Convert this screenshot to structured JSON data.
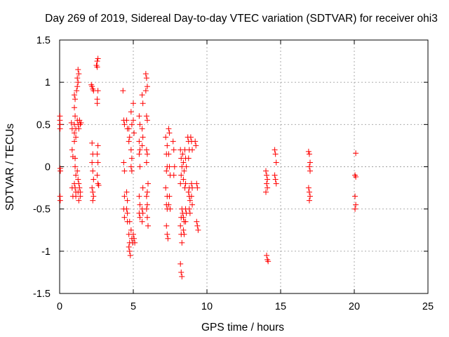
{
  "chart_data": {
    "type": "scatter",
    "title": "Day 269 of 2019, Sidereal Day-to-day VTEC variation (SDTVAR) for receiver ohi3",
    "xlabel": "GPS time / hours",
    "ylabel": "SDTVAR / TECUs",
    "xlim": [
      0,
      25
    ],
    "ylim": [
      -1.5,
      1.5
    ],
    "xticks": [
      "0",
      "5",
      "10",
      "15",
      "20",
      "25"
    ],
    "yticks": [
      "-1.5",
      "-1",
      "-0.5",
      "0",
      "0.5",
      "1",
      "1.5"
    ],
    "xtick_values": [
      0,
      5,
      10,
      15,
      20,
      25
    ],
    "ytick_values": [
      -1.5,
      -1,
      -0.5,
      0,
      0.5,
      1,
      1.5
    ],
    "grid": true,
    "marker": "+",
    "color": "#ff0000",
    "series": [
      {
        "points": [
          [
            0.02,
            0.6
          ],
          [
            0.02,
            0.55
          ],
          [
            0.03,
            0.5
          ],
          [
            0.03,
            0.45
          ],
          [
            0.04,
            -0.02
          ],
          [
            0.05,
            -0.05
          ],
          [
            0.03,
            -0.35
          ],
          [
            0.04,
            -0.4
          ],
          [
            0.8,
            0.52
          ],
          [
            0.85,
            0.45
          ],
          [
            0.85,
            0.2
          ],
          [
            0.9,
            0.12
          ],
          [
            0.85,
            -0.25
          ],
          [
            0.9,
            -0.35
          ],
          [
            1.0,
            0.3
          ],
          [
            1.0,
            0.4
          ],
          [
            1.0,
            0.5
          ],
          [
            1.05,
            0.6
          ],
          [
            1.0,
            0.7
          ],
          [
            1.05,
            0.8
          ],
          [
            1.0,
            0.85
          ],
          [
            1.1,
            0.35
          ],
          [
            1.1,
            0.45
          ],
          [
            1.05,
            0.1
          ],
          [
            1.05,
            0.0
          ],
          [
            1.1,
            -0.1
          ],
          [
            1.0,
            -0.2
          ],
          [
            1.05,
            -0.25
          ],
          [
            1.1,
            -0.3
          ],
          [
            1.1,
            -0.35
          ],
          [
            1.15,
            0.9
          ],
          [
            1.2,
            0.95
          ],
          [
            1.25,
            1.0
          ],
          [
            1.2,
            1.05
          ],
          [
            1.3,
            1.1
          ],
          [
            1.25,
            1.15
          ],
          [
            1.2,
            0.55
          ],
          [
            1.25,
            0.5
          ],
          [
            1.3,
            0.45
          ],
          [
            1.2,
            -0.05
          ],
          [
            1.25,
            -0.15
          ],
          [
            1.3,
            -0.2
          ],
          [
            1.25,
            -0.3
          ],
          [
            1.3,
            -0.4
          ],
          [
            1.35,
            0.55
          ],
          [
            1.4,
            0.5
          ],
          [
            1.45,
            0.52
          ],
          [
            1.35,
            -0.25
          ],
          [
            1.4,
            -0.3
          ],
          [
            1.4,
            -0.35
          ],
          [
            2.15,
            0.97
          ],
          [
            2.2,
            0.95
          ],
          [
            2.25,
            0.92
          ],
          [
            2.3,
            0.9
          ],
          [
            2.2,
            0.28
          ],
          [
            2.25,
            0.15
          ],
          [
            2.2,
            0.05
          ],
          [
            2.25,
            -0.05
          ],
          [
            2.3,
            -0.15
          ],
          [
            2.2,
            -0.25
          ],
          [
            2.25,
            -0.3
          ],
          [
            2.3,
            -0.35
          ],
          [
            2.25,
            -0.4
          ],
          [
            2.5,
            1.2
          ],
          [
            2.55,
            1.25
          ],
          [
            2.6,
            1.28
          ],
          [
            2.55,
            1.18
          ],
          [
            2.6,
            0.9
          ],
          [
            2.55,
            0.8
          ],
          [
            2.55,
            0.75
          ],
          [
            2.6,
            0.25
          ],
          [
            2.55,
            0.15
          ],
          [
            2.6,
            0.05
          ],
          [
            2.55,
            -0.1
          ],
          [
            2.6,
            -0.2
          ],
          [
            2.65,
            -0.22
          ],
          [
            4.3,
            0.9
          ],
          [
            4.35,
            0.55
          ],
          [
            4.4,
            0.5
          ],
          [
            4.35,
            0.05
          ],
          [
            4.4,
            -0.05
          ],
          [
            4.4,
            -0.35
          ],
          [
            4.35,
            -0.5
          ],
          [
            4.4,
            -0.6
          ],
          [
            4.55,
            0.55
          ],
          [
            4.6,
            0.45
          ],
          [
            4.55,
            -0.3
          ],
          [
            4.6,
            -0.4
          ],
          [
            4.55,
            -0.5
          ],
          [
            4.6,
            -0.55
          ],
          [
            4.6,
            -0.65
          ],
          [
            4.7,
            0.45
          ],
          [
            4.75,
            0.35
          ],
          [
            4.7,
            0.3
          ],
          [
            4.75,
            -0.65
          ],
          [
            4.7,
            -0.8
          ],
          [
            4.75,
            -0.9
          ],
          [
            4.7,
            -0.95
          ],
          [
            4.75,
            -1.0
          ],
          [
            4.8,
            -1.05
          ],
          [
            4.85,
            0.65
          ],
          [
            4.9,
            0.5
          ],
          [
            4.85,
            0.2
          ],
          [
            4.9,
            0.1
          ],
          [
            4.85,
            0.0
          ],
          [
            4.9,
            -0.05
          ],
          [
            4.85,
            -0.75
          ],
          [
            4.9,
            -0.85
          ],
          [
            4.95,
            -0.9
          ],
          [
            5.0,
            0.75
          ],
          [
            5.0,
            0.55
          ],
          [
            5.05,
            0.4
          ],
          [
            5.0,
            -0.8
          ],
          [
            5.05,
            -0.85
          ],
          [
            5.1,
            -0.9
          ],
          [
            5.4,
            0.6
          ],
          [
            5.45,
            0.5
          ],
          [
            5.4,
            0.3
          ],
          [
            5.45,
            0.2
          ],
          [
            5.4,
            0.15
          ],
          [
            5.45,
            0.0
          ],
          [
            5.4,
            -0.35
          ],
          [
            5.45,
            -0.45
          ],
          [
            5.4,
            -0.55
          ],
          [
            5.45,
            -0.6
          ],
          [
            5.6,
            0.85
          ],
          [
            5.65,
            0.75
          ],
          [
            5.6,
            0.45
          ],
          [
            5.65,
            0.35
          ],
          [
            5.6,
            0.25
          ],
          [
            5.65,
            -0.25
          ],
          [
            5.6,
            -0.5
          ],
          [
            5.65,
            -0.55
          ],
          [
            5.6,
            -0.65
          ],
          [
            5.85,
            1.1
          ],
          [
            5.9,
            1.05
          ],
          [
            5.95,
            0.95
          ],
          [
            5.85,
            0.9
          ],
          [
            5.9,
            0.6
          ],
          [
            5.95,
            0.55
          ],
          [
            5.9,
            0.2
          ],
          [
            5.95,
            0.15
          ],
          [
            5.9,
            0.05
          ],
          [
            6.0,
            -0.2
          ],
          [
            5.95,
            -0.3
          ],
          [
            5.9,
            -0.35
          ],
          [
            5.95,
            -0.45
          ],
          [
            5.9,
            -0.5
          ],
          [
            5.95,
            -0.6
          ],
          [
            6.0,
            -0.7
          ],
          [
            7.2,
            0.35
          ],
          [
            7.3,
            0.25
          ],
          [
            7.25,
            0.15
          ],
          [
            7.3,
            0.0
          ],
          [
            7.25,
            -0.05
          ],
          [
            7.2,
            -0.25
          ],
          [
            7.3,
            -0.35
          ],
          [
            7.25,
            -0.45
          ],
          [
            7.3,
            -0.5
          ],
          [
            7.25,
            -0.7
          ],
          [
            7.3,
            -0.8
          ],
          [
            7.35,
            -0.85
          ],
          [
            7.4,
            0.45
          ],
          [
            7.45,
            0.4
          ],
          [
            7.4,
            0.15
          ],
          [
            7.45,
            0.0
          ],
          [
            7.5,
            -0.1
          ],
          [
            7.45,
            -0.35
          ],
          [
            7.4,
            -0.45
          ],
          [
            7.5,
            -0.5
          ],
          [
            7.7,
            0.3
          ],
          [
            7.75,
            0.2
          ],
          [
            7.8,
            0.0
          ],
          [
            7.75,
            -0.1
          ],
          [
            8.2,
            0.2
          ],
          [
            8.25,
            0.1
          ],
          [
            8.3,
            0.0
          ],
          [
            8.25,
            -0.1
          ],
          [
            8.2,
            -0.2
          ],
          [
            8.3,
            -0.5
          ],
          [
            8.25,
            -0.6
          ],
          [
            8.2,
            -0.7
          ],
          [
            8.25,
            -0.8
          ],
          [
            8.3,
            -0.9
          ],
          [
            8.2,
            -1.15
          ],
          [
            8.25,
            -1.25
          ],
          [
            8.3,
            -1.3
          ],
          [
            8.35,
            0.15
          ],
          [
            8.4,
            0.05
          ],
          [
            8.45,
            -0.05
          ],
          [
            8.4,
            -0.15
          ],
          [
            8.35,
            -0.55
          ],
          [
            8.4,
            -0.6
          ],
          [
            8.45,
            -0.65
          ],
          [
            8.4,
            -0.75
          ],
          [
            8.45,
            -0.8
          ],
          [
            8.5,
            0.2
          ],
          [
            8.55,
            0.1
          ],
          [
            8.6,
            0.0
          ],
          [
            8.55,
            -0.2
          ],
          [
            8.5,
            -0.25
          ],
          [
            8.55,
            -0.5
          ],
          [
            8.6,
            -0.55
          ],
          [
            8.55,
            -0.65
          ],
          [
            8.7,
            0.35
          ],
          [
            8.75,
            0.3
          ],
          [
            8.8,
            0.2
          ],
          [
            8.75,
            0.1
          ],
          [
            8.8,
            -0.25
          ],
          [
            8.75,
            -0.3
          ],
          [
            8.8,
            -0.35
          ],
          [
            8.85,
            -0.4
          ],
          [
            8.8,
            -0.5
          ],
          [
            8.85,
            -0.55
          ],
          [
            8.9,
            0.35
          ],
          [
            8.95,
            0.3
          ],
          [
            9.0,
            0.2
          ],
          [
            8.95,
            -0.2
          ],
          [
            9.0,
            -0.25
          ],
          [
            8.95,
            -0.35
          ],
          [
            9.0,
            -0.45
          ],
          [
            9.2,
            0.3
          ],
          [
            9.25,
            0.25
          ],
          [
            9.3,
            -0.2
          ],
          [
            9.35,
            -0.25
          ],
          [
            9.3,
            -0.65
          ],
          [
            9.35,
            -0.7
          ],
          [
            9.4,
            -0.75
          ],
          [
            14.0,
            -0.05
          ],
          [
            14.05,
            -0.1
          ],
          [
            14.1,
            -0.15
          ],
          [
            14.05,
            -0.2
          ],
          [
            14.1,
            -0.25
          ],
          [
            14.0,
            -0.3
          ],
          [
            14.05,
            -1.05
          ],
          [
            14.1,
            -1.1
          ],
          [
            14.15,
            -1.12
          ],
          [
            14.6,
            0.2
          ],
          [
            14.65,
            0.15
          ],
          [
            14.7,
            0.05
          ],
          [
            14.6,
            -0.1
          ],
          [
            14.65,
            -0.15
          ],
          [
            14.7,
            -0.2
          ],
          [
            16.9,
            0.18
          ],
          [
            16.95,
            0.15
          ],
          [
            17.0,
            0.05
          ],
          [
            16.95,
            0.0
          ],
          [
            17.0,
            -0.05
          ],
          [
            16.9,
            -0.25
          ],
          [
            16.95,
            -0.3
          ],
          [
            17.0,
            -0.35
          ],
          [
            16.95,
            -0.4
          ],
          [
            20.1,
            0.16
          ],
          [
            20.05,
            -0.1
          ],
          [
            20.1,
            -0.12
          ],
          [
            20.05,
            -0.35
          ],
          [
            20.1,
            -0.45
          ],
          [
            20.05,
            -0.5
          ]
        ]
      }
    ]
  }
}
